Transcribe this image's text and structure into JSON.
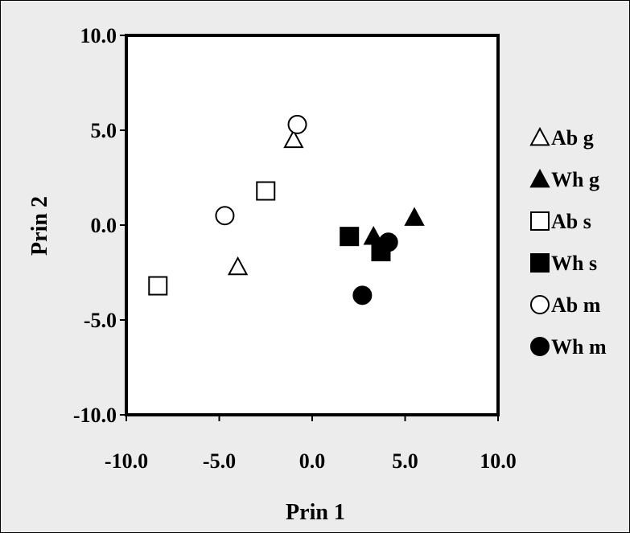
{
  "chart_data": {
    "type": "scatter",
    "xlabel": "Prin 1",
    "ylabel": "Prin 2",
    "xlim": [
      -10,
      10
    ],
    "ylim": [
      -10,
      10
    ],
    "xticks": [
      "-10.0",
      "-5.0",
      "0.0",
      "5.0",
      "10.0"
    ],
    "yticks": [
      "10.0",
      "5.0",
      "0.0",
      "-5.0",
      "-10.0"
    ],
    "grid": false,
    "legend_position": "right",
    "series": [
      {
        "name": "Ab g",
        "marker": "triangle-open",
        "points": [
          [
            -1.0,
            4.5
          ],
          [
            -4.0,
            -2.2
          ]
        ]
      },
      {
        "name": "Wh g",
        "marker": "triangle-filled",
        "points": [
          [
            5.5,
            0.4
          ],
          [
            3.3,
            -0.6
          ]
        ]
      },
      {
        "name": "Ab s",
        "marker": "square-open",
        "points": [
          [
            -2.5,
            1.8
          ],
          [
            -8.3,
            -3.2
          ]
        ]
      },
      {
        "name": "Wh s",
        "marker": "square-filled",
        "points": [
          [
            2.0,
            -0.6
          ],
          [
            3.7,
            -1.4
          ]
        ]
      },
      {
        "name": "Ab m",
        "marker": "circle-open",
        "points": [
          [
            -0.8,
            5.3
          ],
          [
            -4.7,
            0.5
          ]
        ]
      },
      {
        "name": "Wh m",
        "marker": "circle-filled",
        "points": [
          [
            4.1,
            -0.9
          ],
          [
            2.7,
            -3.7
          ]
        ]
      }
    ]
  }
}
